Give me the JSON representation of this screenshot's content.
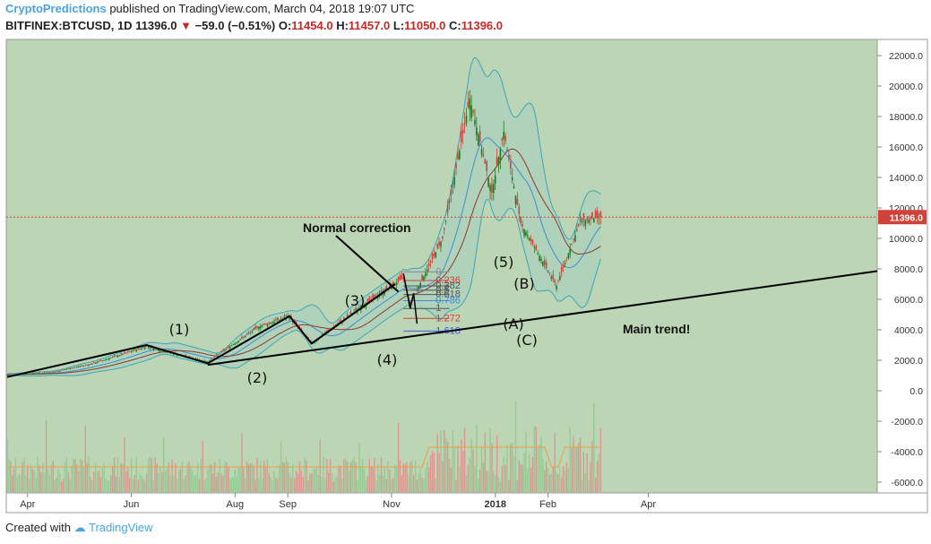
{
  "header": {
    "author": "CryptoPredictions",
    "published": "published on TradingView.com, March 04, 2018 19:07 UTC",
    "symbol": "BITFINEX:BTCUSD, 1D",
    "last": "11396.0",
    "change": "−59.0 (−0.51%)",
    "o_label": "O:",
    "o": "11454.0",
    "h_label": "H:",
    "h": "11457.0",
    "l_label": "L:",
    "l": "11050.0",
    "c_label": "C:",
    "c": "11396.0"
  },
  "footer": {
    "created": "Created with",
    "brand": "TradingView"
  },
  "colors": {
    "bg": "#bcd5b4",
    "up": "#1f7a1f",
    "down": "#d0413a",
    "band": "#3aa6b9",
    "ma": "#8a3a2a",
    "fib": "#3a5bd9"
  },
  "chart_data": {
    "type": "candlestick",
    "y_ticks": [
      "22000.0",
      "20000.0",
      "18000.0",
      "16000.0",
      "14000.0",
      "12000.0",
      "10000.0",
      "8000.0",
      "6000.0",
      "4000.0",
      "2000.0",
      "0.0",
      "-2000.0",
      "-4000.0",
      "-6000.0"
    ],
    "x_ticks": [
      "Apr",
      "Jun",
      "Aug",
      "Sep",
      "Nov",
      "2018",
      "Feb",
      "Apr"
    ],
    "price_label": "11396.0",
    "close_series": [
      {
        "x": "2017-03-20",
        "y": 1050
      },
      {
        "x": "2017-04-15",
        "y": 1200
      },
      {
        "x": "2017-05-10",
        "y": 1800
      },
      {
        "x": "2017-06-10",
        "y": 2900
      },
      {
        "x": "2017-07-16",
        "y": 1900
      },
      {
        "x": "2017-08-15",
        "y": 4200
      },
      {
        "x": "2017-09-02",
        "y": 4900
      },
      {
        "x": "2017-09-15",
        "y": 3100
      },
      {
        "x": "2017-10-15",
        "y": 5600
      },
      {
        "x": "2017-11-08",
        "y": 7400
      },
      {
        "x": "2017-11-12",
        "y": 5700
      },
      {
        "x": "2017-12-01",
        "y": 10000
      },
      {
        "x": "2017-12-17",
        "y": 19200
      },
      {
        "x": "2017-12-30",
        "y": 13000
      },
      {
        "x": "2018-01-06",
        "y": 17000
      },
      {
        "x": "2018-01-16",
        "y": 11000
      },
      {
        "x": "2018-02-06",
        "y": 6900
      },
      {
        "x": "2018-02-20",
        "y": 11100
      },
      {
        "x": "2018-03-04",
        "y": 11396
      }
    ],
    "wave_labels": [
      "(1)",
      "(2)",
      "(3)",
      "(4)",
      "(5)",
      "(A)",
      "(B)",
      "(C)"
    ],
    "fib_levels": [
      "0",
      "0.236",
      "0.382",
      "0.5",
      "0.618",
      "0.786",
      "1",
      "1.272",
      "1.618"
    ],
    "annotations": [
      "Normal correction",
      "Main trend!"
    ]
  }
}
